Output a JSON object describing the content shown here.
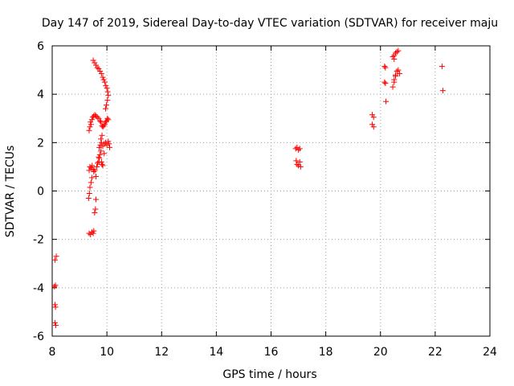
{
  "chart_data": {
    "type": "scatter",
    "title": "Day 147 of 2019, Sidereal Day-to-day VTEC variation (SDTVAR) for receiver maju",
    "xlabel": "GPS time / hours",
    "ylabel": "SDTVAR / TECUs",
    "xlim": [
      8,
      24
    ],
    "ylim": [
      -6,
      6
    ],
    "xticks": [
      8,
      10,
      12,
      14,
      16,
      18,
      20,
      22,
      24
    ],
    "yticks": [
      -6,
      -4,
      -2,
      0,
      2,
      4,
      6
    ],
    "xtick_labels": [
      "8",
      "10",
      "12",
      "14",
      "16",
      "18",
      "20",
      "22",
      "24"
    ],
    "ytick_labels": [
      "-6",
      "-4",
      "-2",
      "0",
      "2",
      "4",
      "6"
    ],
    "grid": true,
    "marker": "+",
    "color": "#ff0000",
    "series": [
      {
        "name": "SDTVAR",
        "points": [
          [
            8.1,
            -5.45
          ],
          [
            8.13,
            -5.55
          ],
          [
            8.1,
            -4.7
          ],
          [
            8.12,
            -4.8
          ],
          [
            8.08,
            -3.95
          ],
          [
            8.12,
            -3.9
          ],
          [
            8.1,
            -2.85
          ],
          [
            8.15,
            -2.7
          ],
          [
            9.35,
            -1.75
          ],
          [
            9.4,
            -1.8
          ],
          [
            9.45,
            -1.7
          ],
          [
            9.5,
            -1.75
          ],
          [
            9.52,
            -1.65
          ],
          [
            9.55,
            -0.9
          ],
          [
            9.58,
            -0.75
          ],
          [
            9.6,
            -0.35
          ],
          [
            9.33,
            -0.3
          ],
          [
            9.36,
            -0.1
          ],
          [
            9.38,
            0.15
          ],
          [
            9.42,
            0.35
          ],
          [
            9.45,
            0.55
          ],
          [
            9.35,
            0.85
          ],
          [
            9.38,
            1.0
          ],
          [
            9.42,
            0.95
          ],
          [
            9.46,
            1.05
          ],
          [
            9.5,
            0.9
          ],
          [
            9.52,
            0.8
          ],
          [
            9.56,
            0.85
          ],
          [
            9.6,
            0.6
          ],
          [
            9.63,
            1.0
          ],
          [
            9.66,
            1.15
          ],
          [
            9.7,
            1.2
          ],
          [
            9.72,
            1.35
          ],
          [
            9.74,
            1.5
          ],
          [
            9.78,
            1.65
          ],
          [
            9.8,
            1.2
          ],
          [
            9.82,
            1.1
          ],
          [
            9.85,
            1.05
          ],
          [
            9.35,
            2.5
          ],
          [
            9.38,
            2.65
          ],
          [
            9.4,
            2.85
          ],
          [
            9.42,
            2.75
          ],
          [
            9.45,
            2.95
          ],
          [
            9.48,
            3.05
          ],
          [
            9.52,
            3.1
          ],
          [
            9.56,
            3.15
          ],
          [
            9.6,
            3.1
          ],
          [
            9.65,
            3.05
          ],
          [
            9.7,
            3.0
          ],
          [
            9.75,
            2.9
          ],
          [
            9.78,
            2.85
          ],
          [
            9.82,
            2.7
          ],
          [
            9.85,
            2.65
          ],
          [
            9.88,
            2.7
          ],
          [
            9.92,
            2.75
          ],
          [
            9.95,
            2.85
          ],
          [
            9.98,
            2.9
          ],
          [
            10.02,
            3.0
          ],
          [
            10.05,
            2.95
          ],
          [
            9.5,
            5.4
          ],
          [
            9.55,
            5.3
          ],
          [
            9.6,
            5.2
          ],
          [
            9.65,
            5.1
          ],
          [
            9.7,
            5.05
          ],
          [
            9.75,
            4.95
          ],
          [
            9.8,
            4.85
          ],
          [
            9.85,
            4.7
          ],
          [
            9.88,
            4.6
          ],
          [
            9.92,
            4.5
          ],
          [
            9.96,
            4.35
          ],
          [
            10.0,
            4.25
          ],
          [
            10.03,
            4.1
          ],
          [
            10.05,
            3.95
          ],
          [
            10.02,
            3.75
          ],
          [
            9.98,
            3.55
          ],
          [
            9.95,
            3.4
          ],
          [
            9.72,
            1.8
          ],
          [
            9.76,
            1.9
          ],
          [
            9.8,
            2.0
          ],
          [
            9.85,
            1.85
          ],
          [
            9.9,
            1.95
          ],
          [
            9.95,
            2.0
          ],
          [
            10.0,
            1.9
          ],
          [
            10.05,
            2.05
          ],
          [
            10.08,
            1.95
          ],
          [
            10.1,
            1.8
          ],
          [
            9.7,
            1.4
          ],
          [
            9.9,
            1.55
          ],
          [
            9.78,
            2.15
          ],
          [
            9.82,
            2.3
          ],
          [
            16.9,
            1.75
          ],
          [
            16.95,
            1.8
          ],
          [
            17.0,
            1.7
          ],
          [
            17.05,
            1.75
          ],
          [
            16.92,
            1.25
          ],
          [
            16.95,
            1.1
          ],
          [
            17.0,
            1.05
          ],
          [
            17.05,
            1.2
          ],
          [
            17.08,
            1.0
          ],
          [
            19.7,
            3.15
          ],
          [
            19.75,
            3.05
          ],
          [
            19.7,
            2.75
          ],
          [
            19.75,
            2.65
          ],
          [
            20.15,
            5.15
          ],
          [
            20.18,
            5.1
          ],
          [
            20.15,
            4.5
          ],
          [
            20.18,
            4.45
          ],
          [
            20.2,
            3.7
          ],
          [
            20.45,
            5.55
          ],
          [
            20.5,
            5.6
          ],
          [
            20.55,
            5.7
          ],
          [
            20.6,
            5.75
          ],
          [
            20.65,
            5.8
          ],
          [
            20.5,
            5.45
          ],
          [
            20.45,
            4.3
          ],
          [
            20.5,
            4.5
          ],
          [
            20.55,
            4.8
          ],
          [
            20.6,
            4.95
          ],
          [
            20.65,
            5.0
          ],
          [
            20.7,
            4.85
          ],
          [
            20.55,
            4.75
          ],
          [
            20.5,
            4.6
          ],
          [
            22.25,
            5.15
          ],
          [
            22.28,
            4.15
          ]
        ]
      }
    ]
  }
}
